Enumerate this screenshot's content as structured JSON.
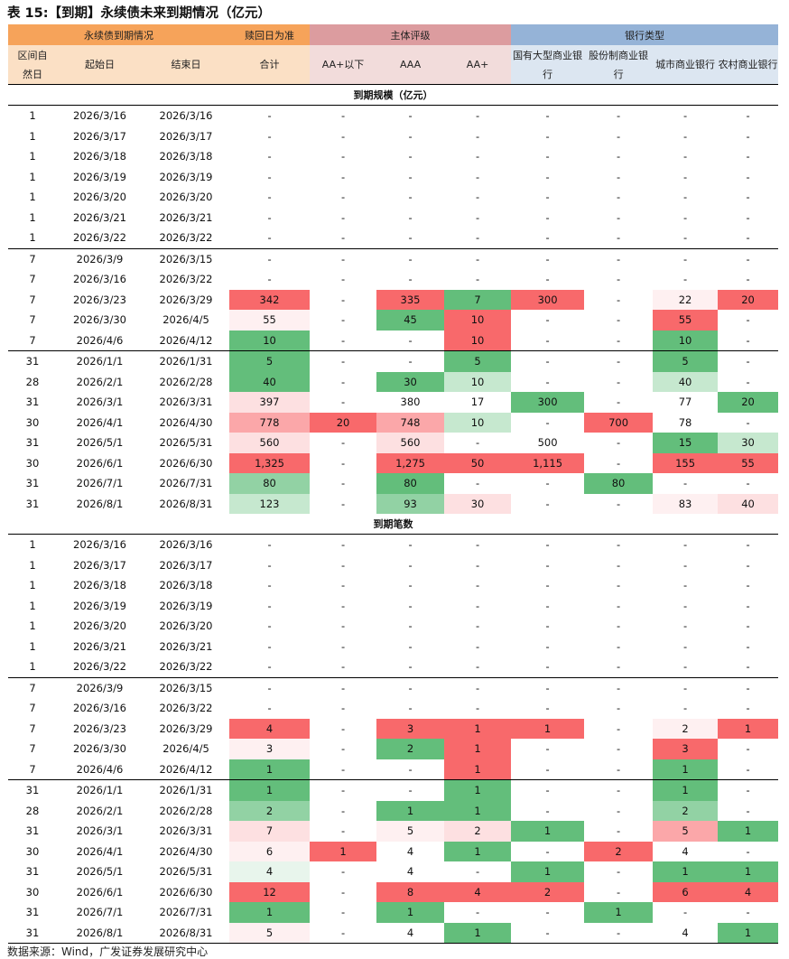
{
  "title": "表 15:【到期】永续债未来到期情况（亿元）",
  "header": {
    "groups": [
      "永续债到期情况",
      "赎回日为准",
      "主体评级",
      "银行类型"
    ],
    "columns": [
      "区间自然日",
      "起始日",
      "结束日",
      "合计",
      "AA+以下",
      "AAA",
      "AA+",
      "国有大型商业银行",
      "股份制商业银行",
      "城市商业银行",
      "农村商业银行"
    ]
  },
  "sections": [
    {
      "title": "到期规模（亿元）",
      "groups": [
        [
          [
            "1",
            "2026/3/16",
            "2026/3/16",
            "-",
            "-",
            "-",
            "-",
            "-",
            "-",
            "-",
            "-"
          ],
          [
            "1",
            "2026/3/17",
            "2026/3/17",
            "-",
            "-",
            "-",
            "-",
            "-",
            "-",
            "-",
            "-"
          ],
          [
            "1",
            "2026/3/18",
            "2026/3/18",
            "-",
            "-",
            "-",
            "-",
            "-",
            "-",
            "-",
            "-"
          ],
          [
            "1",
            "2026/3/19",
            "2026/3/19",
            "-",
            "-",
            "-",
            "-",
            "-",
            "-",
            "-",
            "-"
          ],
          [
            "1",
            "2026/3/20",
            "2026/3/20",
            "-",
            "-",
            "-",
            "-",
            "-",
            "-",
            "-",
            "-"
          ],
          [
            "1",
            "2026/3/21",
            "2026/3/21",
            "-",
            "-",
            "-",
            "-",
            "-",
            "-",
            "-",
            "-"
          ],
          [
            "1",
            "2026/3/22",
            "2026/3/22",
            "-",
            "-",
            "-",
            "-",
            "-",
            "-",
            "-",
            "-"
          ]
        ],
        [
          [
            "7",
            "2026/3/9",
            "2026/3/15",
            "-",
            "-",
            "-",
            "-",
            "-",
            "-",
            "-",
            "-"
          ],
          [
            "7",
            "2026/3/16",
            "2026/3/22",
            "-",
            "-",
            "-",
            "-",
            "-",
            "-",
            "-",
            "-"
          ],
          [
            "7",
            "2026/3/23",
            "2026/3/29",
            "342",
            "-",
            "335",
            "7",
            "300",
            "-",
            "22",
            "20"
          ],
          [
            "7",
            "2026/3/30",
            "2026/4/5",
            "55",
            "-",
            "45",
            "10",
            "-",
            "-",
            "55",
            "-"
          ],
          [
            "7",
            "2026/4/6",
            "2026/4/12",
            "10",
            "-",
            "-",
            "10",
            "-",
            "-",
            "10",
            "-"
          ]
        ],
        [
          [
            "31",
            "2026/1/1",
            "2026/1/31",
            "5",
            "-",
            "-",
            "5",
            "-",
            "-",
            "5",
            "-"
          ],
          [
            "28",
            "2026/2/1",
            "2026/2/28",
            "40",
            "-",
            "30",
            "10",
            "-",
            "-",
            "40",
            "-"
          ],
          [
            "31",
            "2026/3/1",
            "2026/3/31",
            "397",
            "-",
            "380",
            "17",
            "300",
            "-",
            "77",
            "20"
          ],
          [
            "30",
            "2026/4/1",
            "2026/4/30",
            "778",
            "20",
            "748",
            "10",
            "-",
            "700",
            "78",
            "-"
          ],
          [
            "31",
            "2026/5/1",
            "2026/5/31",
            "560",
            "-",
            "560",
            "-",
            "500",
            "-",
            "15",
            "30"
          ],
          [
            "30",
            "2026/6/1",
            "2026/6/30",
            "1,325",
            "-",
            "1,275",
            "50",
            "1,115",
            "-",
            "155",
            "55"
          ],
          [
            "31",
            "2026/7/1",
            "2026/7/31",
            "80",
            "-",
            "80",
            "-",
            "-",
            "80",
            "-",
            "-"
          ],
          [
            "31",
            "2026/8/1",
            "2026/8/31",
            "123",
            "-",
            "93",
            "30",
            "-",
            "-",
            "83",
            "40"
          ]
        ]
      ],
      "shades": [
        [
          [
            "",
            "",
            "",
            "",
            "",
            "",
            "",
            "",
            "",
            "",
            ""
          ],
          [
            "",
            "",
            "",
            "",
            "",
            "",
            "",
            "",
            "",
            "",
            ""
          ],
          [
            "",
            "",
            "",
            "",
            "",
            "",
            "",
            "",
            "",
            "",
            ""
          ],
          [
            "",
            "",
            "",
            "",
            "",
            "",
            "",
            "",
            "",
            "",
            ""
          ],
          [
            "",
            "",
            "",
            "",
            "",
            "",
            "",
            "",
            "",
            "",
            ""
          ],
          [
            "",
            "",
            "",
            "",
            "",
            "",
            "",
            "",
            "",
            "",
            ""
          ],
          [
            "",
            "",
            "",
            "",
            "",
            "",
            "",
            "",
            "",
            "",
            ""
          ]
        ],
        [
          [
            "",
            "",
            "",
            "",
            "",
            "",
            "",
            "",
            "",
            "",
            ""
          ],
          [
            "",
            "",
            "",
            "",
            "",
            "",
            "",
            "",
            "",
            "",
            ""
          ],
          [
            "",
            "",
            "",
            "redD",
            "",
            "redD",
            "grnD",
            "redD",
            "",
            "redX",
            "redD"
          ],
          [
            "",
            "",
            "",
            "redX",
            "",
            "grnD",
            "redD",
            "",
            "",
            "redD",
            ""
          ],
          [
            "",
            "",
            "",
            "grnD",
            "",
            "",
            "redD",
            "",
            "",
            "grnD",
            ""
          ]
        ],
        [
          [
            "",
            "",
            "",
            "grnD",
            "",
            "",
            "grnD",
            "",
            "",
            "grnD",
            ""
          ],
          [
            "",
            "",
            "",
            "grnD",
            "",
            "grnD",
            "grnL",
            "",
            "",
            "grnL",
            ""
          ],
          [
            "",
            "",
            "",
            "redL",
            "",
            "",
            "",
            "grnD",
            "",
            "",
            "grnD"
          ],
          [
            "",
            "",
            "",
            "redM",
            "redD",
            "redM",
            "grnL",
            "",
            "redD",
            "",
            ""
          ],
          [
            "",
            "",
            "",
            "redL",
            "",
            "redL",
            "",
            "",
            "",
            "grnD",
            "grnL"
          ],
          [
            "",
            "",
            "",
            "redD",
            "",
            "redD",
            "redD",
            "redD",
            "",
            "redD",
            "redD"
          ],
          [
            "",
            "",
            "",
            "grnM",
            "",
            "grnD",
            "",
            "",
            "grnD",
            "",
            ""
          ],
          [
            "",
            "",
            "",
            "grnL",
            "",
            "grnM",
            "redL",
            "",
            "",
            "redX",
            "redL"
          ]
        ]
      ]
    },
    {
      "title": "到期笔数",
      "groups": [
        [
          [
            "1",
            "2026/3/16",
            "2026/3/16",
            "-",
            "-",
            "-",
            "-",
            "-",
            "-",
            "-",
            "-"
          ],
          [
            "1",
            "2026/3/17",
            "2026/3/17",
            "-",
            "-",
            "-",
            "-",
            "-",
            "-",
            "-",
            "-"
          ],
          [
            "1",
            "2026/3/18",
            "2026/3/18",
            "-",
            "-",
            "-",
            "-",
            "-",
            "-",
            "-",
            "-"
          ],
          [
            "1",
            "2026/3/19",
            "2026/3/19",
            "-",
            "-",
            "-",
            "-",
            "-",
            "-",
            "-",
            "-"
          ],
          [
            "1",
            "2026/3/20",
            "2026/3/20",
            "-",
            "-",
            "-",
            "-",
            "-",
            "-",
            "-",
            "-"
          ],
          [
            "1",
            "2026/3/21",
            "2026/3/21",
            "-",
            "-",
            "-",
            "-",
            "-",
            "-",
            "-",
            "-"
          ],
          [
            "1",
            "2026/3/22",
            "2026/3/22",
            "-",
            "-",
            "-",
            "-",
            "-",
            "-",
            "-",
            "-"
          ]
        ],
        [
          [
            "7",
            "2026/3/9",
            "2026/3/15",
            "-",
            "-",
            "-",
            "-",
            "-",
            "-",
            "-",
            "-"
          ],
          [
            "7",
            "2026/3/16",
            "2026/3/22",
            "-",
            "-",
            "-",
            "-",
            "-",
            "-",
            "-",
            "-"
          ],
          [
            "7",
            "2026/3/23",
            "2026/3/29",
            "4",
            "-",
            "3",
            "1",
            "1",
            "-",
            "2",
            "1"
          ],
          [
            "7",
            "2026/3/30",
            "2026/4/5",
            "3",
            "-",
            "2",
            "1",
            "-",
            "-",
            "3",
            "-"
          ],
          [
            "7",
            "2026/4/6",
            "2026/4/12",
            "1",
            "-",
            "-",
            "1",
            "-",
            "-",
            "1",
            "-"
          ]
        ],
        [
          [
            "31",
            "2026/1/1",
            "2026/1/31",
            "1",
            "-",
            "-",
            "1",
            "-",
            "-",
            "1",
            "-"
          ],
          [
            "28",
            "2026/2/1",
            "2026/2/28",
            "2",
            "-",
            "1",
            "1",
            "-",
            "-",
            "2",
            "-"
          ],
          [
            "31",
            "2026/3/1",
            "2026/3/31",
            "7",
            "-",
            "5",
            "2",
            "1",
            "-",
            "5",
            "1"
          ],
          [
            "30",
            "2026/4/1",
            "2026/4/30",
            "6",
            "1",
            "4",
            "1",
            "-",
            "2",
            "4",
            "-"
          ],
          [
            "31",
            "2026/5/1",
            "2026/5/31",
            "4",
            "-",
            "4",
            "-",
            "1",
            "-",
            "1",
            "1"
          ],
          [
            "30",
            "2026/6/1",
            "2026/6/30",
            "12",
            "-",
            "8",
            "4",
            "2",
            "-",
            "6",
            "4"
          ],
          [
            "31",
            "2026/7/1",
            "2026/7/31",
            "1",
            "-",
            "1",
            "-",
            "-",
            "1",
            "-",
            "-"
          ],
          [
            "31",
            "2026/8/1",
            "2026/8/31",
            "5",
            "-",
            "4",
            "1",
            "-",
            "-",
            "4",
            "1"
          ]
        ]
      ],
      "shades": [
        [
          [
            "",
            "",
            "",
            "",
            "",
            "",
            "",
            "",
            "",
            "",
            ""
          ],
          [
            "",
            "",
            "",
            "",
            "",
            "",
            "",
            "",
            "",
            "",
            ""
          ],
          [
            "",
            "",
            "",
            "",
            "",
            "",
            "",
            "",
            "",
            "",
            ""
          ],
          [
            "",
            "",
            "",
            "",
            "",
            "",
            "",
            "",
            "",
            "",
            ""
          ],
          [
            "",
            "",
            "",
            "",
            "",
            "",
            "",
            "",
            "",
            "",
            ""
          ],
          [
            "",
            "",
            "",
            "",
            "",
            "",
            "",
            "",
            "",
            "",
            ""
          ],
          [
            "",
            "",
            "",
            "",
            "",
            "",
            "",
            "",
            "",
            "",
            ""
          ]
        ],
        [
          [
            "",
            "",
            "",
            "",
            "",
            "",
            "",
            "",
            "",
            "",
            ""
          ],
          [
            "",
            "",
            "",
            "",
            "",
            "",
            "",
            "",
            "",
            "",
            ""
          ],
          [
            "",
            "",
            "",
            "redD",
            "",
            "redD",
            "redD",
            "redD",
            "",
            "redX",
            "redD"
          ],
          [
            "",
            "",
            "",
            "redX",
            "",
            "grnD",
            "redD",
            "",
            "",
            "redD",
            ""
          ],
          [
            "",
            "",
            "",
            "grnD",
            "",
            "",
            "redD",
            "",
            "",
            "grnD",
            ""
          ]
        ],
        [
          [
            "",
            "",
            "",
            "grnD",
            "",
            "",
            "grnD",
            "",
            "",
            "grnD",
            ""
          ],
          [
            "",
            "",
            "",
            "grnM",
            "",
            "grnD",
            "grnD",
            "",
            "",
            "grnM",
            ""
          ],
          [
            "",
            "",
            "",
            "redL",
            "",
            "redX",
            "redL",
            "grnD",
            "",
            "redM",
            "grnD"
          ],
          [
            "",
            "",
            "",
            "redX",
            "redD",
            "",
            "grnD",
            "",
            "redD",
            "",
            ""
          ],
          [
            "",
            "",
            "",
            "grnX",
            "",
            "",
            "",
            "grnD",
            "",
            "grnD",
            "grnD"
          ],
          [
            "",
            "",
            "",
            "redD",
            "",
            "redD",
            "redD",
            "redD",
            "",
            "redD",
            "redD"
          ],
          [
            "",
            "",
            "",
            "grnD",
            "",
            "grnD",
            "",
            "",
            "grnD",
            "",
            ""
          ],
          [
            "",
            "",
            "",
            "redX",
            "",
            "",
            "grnD",
            "",
            "",
            "",
            "grnD"
          ]
        ]
      ]
    }
  ],
  "footer": "数据来源：Wind，广发证券发展研究中心"
}
